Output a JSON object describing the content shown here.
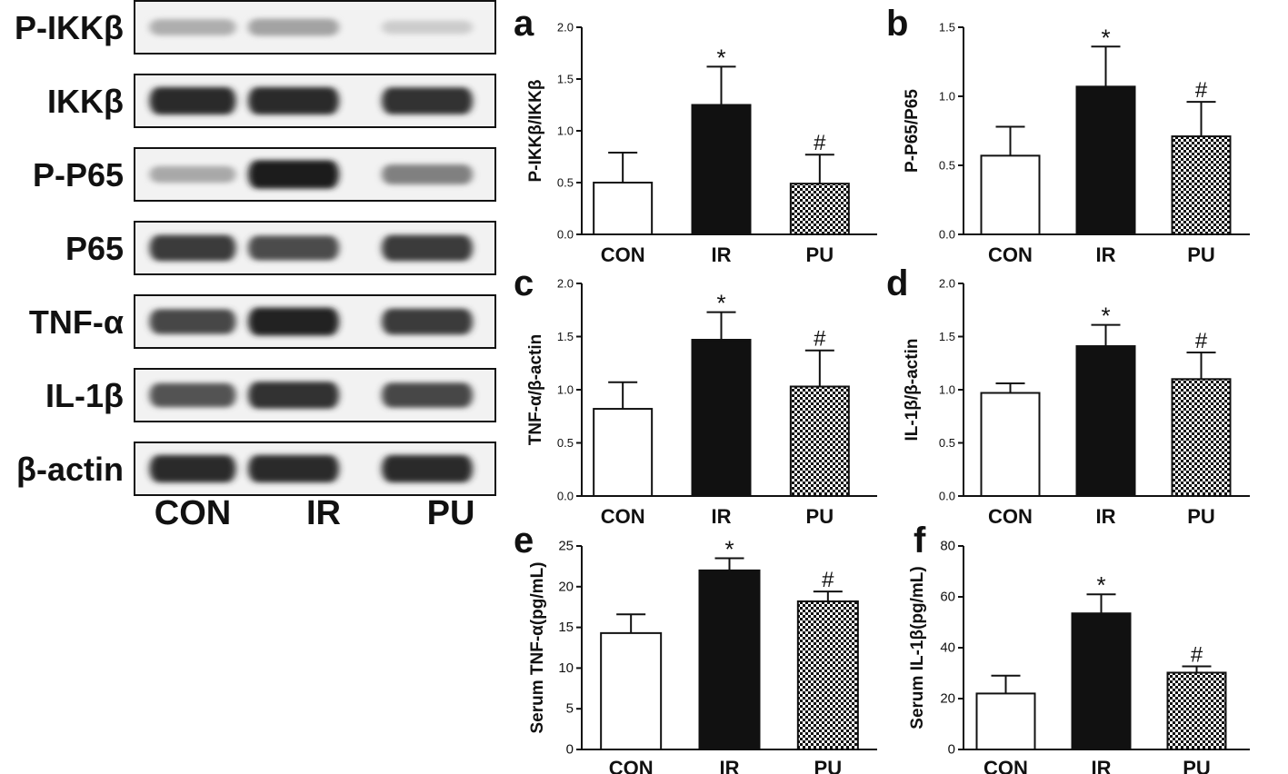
{
  "western_blot": {
    "rows": [
      {
        "label": "P-IKKβ",
        "intensity": [
          0.35,
          0.4,
          0.22
        ]
      },
      {
        "label": "IKKβ",
        "intensity": [
          0.92,
          0.92,
          0.9
        ]
      },
      {
        "label": "P-P65",
        "intensity": [
          0.38,
          0.98,
          0.55
        ]
      },
      {
        "label": "P65",
        "intensity": [
          0.85,
          0.78,
          0.85
        ]
      },
      {
        "label": "TNF-α",
        "intensity": [
          0.8,
          0.95,
          0.85
        ]
      },
      {
        "label": "IL-1β",
        "intensity": [
          0.75,
          0.9,
          0.8
        ]
      },
      {
        "label": "β-actin",
        "intensity": [
          0.92,
          0.92,
          0.92
        ]
      }
    ],
    "lanes": [
      "CON",
      "IR",
      "PU"
    ]
  },
  "chart_data": [
    {
      "panel": "a",
      "type": "bar",
      "ylabel": "P-IKKβ/IKKβ",
      "ylim": [
        0,
        2.0
      ],
      "yticks": [
        "0.0",
        "0.5",
        "1.0",
        "1.5",
        "2.0"
      ],
      "categories": [
        "CON",
        "IR",
        "PU"
      ],
      "values": [
        0.5,
        1.25,
        0.49
      ],
      "errors": [
        0.29,
        0.37,
        0.28
      ],
      "markers": [
        "",
        "*",
        "#"
      ],
      "fills": [
        "white",
        "black",
        "checker"
      ]
    },
    {
      "panel": "b",
      "type": "bar",
      "ylabel": "P-P65/P65",
      "ylim": [
        0,
        1.5
      ],
      "yticks": [
        "0.0",
        "0.5",
        "1.0",
        "1.5"
      ],
      "categories": [
        "CON",
        "IR",
        "PU"
      ],
      "values": [
        0.57,
        1.07,
        0.71
      ],
      "errors": [
        0.21,
        0.29,
        0.25
      ],
      "markers": [
        "",
        "*",
        "#"
      ],
      "fills": [
        "white",
        "black",
        "checker"
      ]
    },
    {
      "panel": "c",
      "type": "bar",
      "ylabel": "TNF-α/β-actin",
      "ylim": [
        0,
        2.0
      ],
      "yticks": [
        "0.0",
        "0.5",
        "1.0",
        "1.5",
        "2.0"
      ],
      "categories": [
        "CON",
        "IR",
        "PU"
      ],
      "values": [
        0.82,
        1.47,
        1.03
      ],
      "errors": [
        0.25,
        0.26,
        0.34
      ],
      "markers": [
        "",
        "*",
        "#"
      ],
      "fills": [
        "white",
        "black",
        "checker"
      ]
    },
    {
      "panel": "d",
      "type": "bar",
      "ylabel": "IL-1β/β-actin",
      "ylim": [
        0,
        2.0
      ],
      "yticks": [
        "0.0",
        "0.5",
        "1.0",
        "1.5",
        "2.0"
      ],
      "categories": [
        "CON",
        "IR",
        "PU"
      ],
      "values": [
        0.97,
        1.41,
        1.1
      ],
      "errors": [
        0.09,
        0.2,
        0.25
      ],
      "markers": [
        "",
        "*",
        "#"
      ],
      "fills": [
        "white",
        "black",
        "checker"
      ]
    },
    {
      "panel": "e",
      "type": "bar",
      "ylabel": "Serum TNF-α(pg/mL)",
      "ylim": [
        0,
        25
      ],
      "yticks": [
        "0",
        "5",
        "10",
        "15",
        "20",
        "25"
      ],
      "categories": [
        "CON",
        "IR",
        "PU"
      ],
      "values": [
        14.3,
        22.0,
        18.2
      ],
      "errors": [
        2.3,
        1.5,
        1.2
      ],
      "markers": [
        "",
        "*",
        "#"
      ],
      "fills": [
        "white",
        "black",
        "checker"
      ]
    },
    {
      "panel": "f",
      "type": "bar",
      "ylabel": "Serum IL-1β(pg/mL)",
      "ylim": [
        0,
        80
      ],
      "yticks": [
        "0",
        "20",
        "40",
        "60",
        "80"
      ],
      "categories": [
        "CON",
        "IR",
        "PU"
      ],
      "values": [
        22.0,
        53.5,
        30.2
      ],
      "errors": [
        7.0,
        7.5,
        2.5
      ],
      "markers": [
        "",
        "*",
        "#"
      ],
      "fills": [
        "white",
        "black",
        "checker"
      ]
    }
  ]
}
